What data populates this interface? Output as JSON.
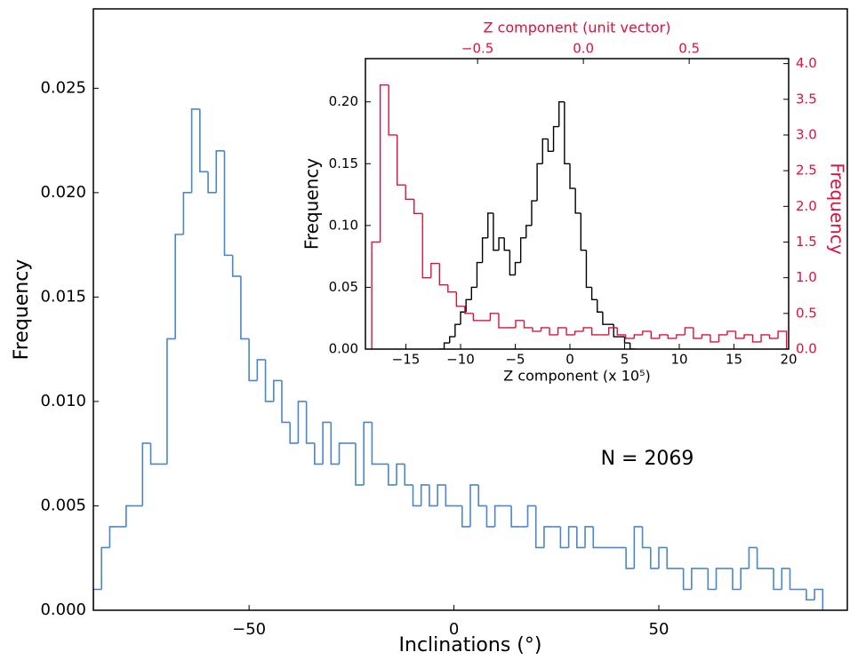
{
  "chart_data": [
    {
      "type": "histogram",
      "xlabel": "Inclinations (°)",
      "ylabel": "Frequency",
      "annotation": "N = 2069",
      "xlim": [
        -88,
        96
      ],
      "ylim": [
        0,
        0.0288
      ],
      "xticks": [
        {
          "value": -50,
          "label": "−50"
        },
        0,
        50
      ],
      "yticks": [
        {
          "value": 0,
          "label": "0.000"
        },
        0.005,
        {
          "value": 0.01,
          "label": "0.010"
        },
        0.015,
        {
          "value": 0.02,
          "label": "0.020"
        },
        0.025
      ],
      "series": [
        {
          "color": "#4a86c8",
          "bins": [
            -88,
            -86,
            -84,
            -82,
            -80,
            -78,
            -76,
            -74,
            -72,
            -70,
            -68,
            -66,
            -64,
            -62,
            -60,
            -58,
            -56,
            -54,
            -52,
            -50,
            -48,
            -46,
            -44,
            -42,
            -40,
            -38,
            -36,
            -34,
            -32,
            -30,
            -28,
            -26,
            -24,
            -22,
            -20,
            -18,
            -16,
            -14,
            -12,
            -10,
            -8,
            -6,
            -4,
            -2,
            0,
            2,
            4,
            6,
            8,
            10,
            12,
            14,
            16,
            18,
            20,
            22,
            24,
            26,
            28,
            30,
            32,
            34,
            36,
            38,
            40,
            42,
            44,
            46,
            48,
            50,
            52,
            54,
            56,
            58,
            60,
            62,
            64,
            66,
            68,
            70,
            72,
            74,
            76,
            78,
            80,
            82,
            84,
            86,
            88,
            90
          ],
          "values": [
            0.001,
            0.003,
            0.004,
            0.004,
            0.005,
            0.005,
            0.008,
            0.007,
            0.007,
            0.013,
            0.018,
            0.02,
            0.024,
            0.021,
            0.02,
            0.022,
            0.017,
            0.016,
            0.013,
            0.011,
            0.012,
            0.01,
            0.011,
            0.009,
            0.008,
            0.01,
            0.008,
            0.007,
            0.009,
            0.007,
            0.008,
            0.008,
            0.006,
            0.009,
            0.007,
            0.007,
            0.006,
            0.007,
            0.006,
            0.005,
            0.006,
            0.005,
            0.006,
            0.005,
            0.005,
            0.004,
            0.006,
            0.005,
            0.004,
            0.005,
            0.005,
            0.004,
            0.004,
            0.005,
            0.003,
            0.004,
            0.004,
            0.003,
            0.004,
            0.003,
            0.004,
            0.003,
            0.003,
            0.003,
            0.003,
            0.002,
            0.004,
            0.003,
            0.002,
            0.003,
            0.002,
            0.002,
            0.001,
            0.002,
            0.002,
            0.001,
            0.002,
            0.002,
            0.001,
            0.002,
            0.003,
            0.002,
            0.002,
            0.001,
            0.002,
            0.001,
            0.001,
            0.0005,
            0.001
          ]
        }
      ]
    },
    {
      "type": "histogram",
      "xlabel": "Z component (x 10⁵)",
      "ylabel": "Frequency",
      "x2label": "Z component (unit vector)",
      "y2label": "Frequency",
      "xlim": [
        -18.7,
        20
      ],
      "ylim": [
        0,
        0.235
      ],
      "x2lim": [
        -1.03,
        0.97
      ],
      "y2lim": [
        0,
        4.07
      ],
      "xticks": [
        {
          "value": -15,
          "label": "−15"
        },
        {
          "value": -10,
          "label": "−10"
        },
        {
          "value": -5,
          "label": "−5"
        },
        0,
        5,
        10,
        15,
        20
      ],
      "yticks": [
        {
          "value": 0,
          "label": "0.00"
        },
        {
          "value": 0.05,
          "label": "0.05"
        },
        {
          "value": 0.1,
          "label": "0.10"
        },
        {
          "value": 0.15,
          "label": "0.15"
        },
        {
          "value": 0.2,
          "label": "0.20"
        }
      ],
      "x2ticks": [
        {
          "value": -0.5,
          "label": "−0.5"
        },
        {
          "value": 0,
          "label": "0.0"
        },
        0.5
      ],
      "y2ticks": [
        {
          "value": 0,
          "label": "0.0"
        },
        0.5,
        {
          "value": 1,
          "label": "1.0"
        },
        1.5,
        {
          "value": 2,
          "label": "2.0"
        },
        2.5,
        {
          "value": 3,
          "label": "3.0"
        },
        3.5,
        {
          "value": 4,
          "label": "4.0"
        }
      ],
      "axis_color2": "#e0103c",
      "series": [
        {
          "color": "#000000",
          "bins": [
            -12,
            -11.5,
            -11,
            -10.5,
            -10,
            -9.5,
            -9,
            -8.5,
            -8,
            -7.5,
            -7,
            -6.5,
            -6,
            -5.5,
            -5,
            -4.5,
            -4,
            -3.5,
            -3,
            -2.5,
            -2,
            -1.5,
            -1,
            -0.5,
            0,
            0.5,
            1,
            1.5,
            2,
            2.5,
            3,
            3.5,
            4,
            4.5,
            5,
            5.5,
            6
          ],
          "values": [
            0,
            0.005,
            0.01,
            0.02,
            0.03,
            0.04,
            0.05,
            0.07,
            0.09,
            0.11,
            0.08,
            0.09,
            0.08,
            0.06,
            0.07,
            0.09,
            0.1,
            0.12,
            0.15,
            0.17,
            0.16,
            0.18,
            0.2,
            0.15,
            0.13,
            0.11,
            0.08,
            0.05,
            0.04,
            0.03,
            0.02,
            0.02,
            0.01,
            0.01,
            0.005,
            0
          ]
        },
        {
          "color": "#e0103c",
          "axis": "y2",
          "xaxis": "x2",
          "bins": [
            -1.0,
            -0.96,
            -0.92,
            -0.88,
            -0.84,
            -0.8,
            -0.76,
            -0.72,
            -0.68,
            -0.64,
            -0.6,
            -0.56,
            -0.52,
            -0.48,
            -0.44,
            -0.4,
            -0.36,
            -0.32,
            -0.28,
            -0.24,
            -0.2,
            -0.16,
            -0.12,
            -0.08,
            -0.04,
            0,
            0.04,
            0.08,
            0.12,
            0.16,
            0.2,
            0.24,
            0.28,
            0.32,
            0.36,
            0.4,
            0.44,
            0.48,
            0.52,
            0.56,
            0.6,
            0.64,
            0.68,
            0.72,
            0.76,
            0.8,
            0.84,
            0.88,
            0.92,
            0.96
          ],
          "values": [
            1.5,
            3.7,
            3.0,
            2.3,
            2.1,
            1.9,
            1.0,
            1.2,
            0.9,
            0.8,
            0.6,
            0.5,
            0.4,
            0.4,
            0.5,
            0.3,
            0.3,
            0.4,
            0.3,
            0.25,
            0.3,
            0.2,
            0.3,
            0.2,
            0.25,
            0.3,
            0.2,
            0.2,
            0.3,
            0.2,
            0.15,
            0.2,
            0.25,
            0.15,
            0.2,
            0.15,
            0.2,
            0.3,
            0.15,
            0.2,
            0.1,
            0.2,
            0.25,
            0.15,
            0.2,
            0.1,
            0.2,
            0.15,
            0.25
          ]
        }
      ]
    }
  ]
}
